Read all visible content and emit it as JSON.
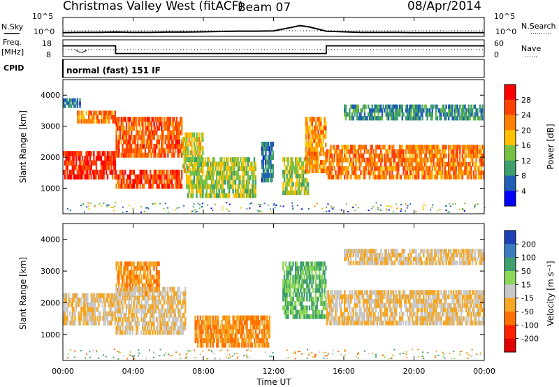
{
  "header": {
    "station": "Christmas Valley West (fitACF)",
    "beam": "Beam 07",
    "date": "08/Apr/2014"
  },
  "labels": {
    "nsky": "N.Sky",
    "nsearch": "N.Search",
    "freq": "Freq.",
    "freq_unit": "[MHz]",
    "nave": "Nave",
    "cpid": "CPID",
    "cpid_value": "normal (fast) 151 IF",
    "slant_range": "Slant Range [km]",
    "power": "Power [dB]",
    "velocity": "Velocity [m s⁻¹]",
    "time": "Time UT"
  },
  "axes": {
    "x_ticks": [
      "00:00",
      "04:00",
      "08:00",
      "12:00",
      "16:00",
      "20:00",
      "00:00"
    ],
    "y_ticks": [
      "1000",
      "2000",
      "3000",
      "4000"
    ],
    "noise_left_ticks": [
      "10^5",
      "10^0"
    ],
    "noise_right_ticks": [
      "10^5",
      "10^0"
    ],
    "freq_ticks": [
      "18",
      "8"
    ],
    "nave_ticks": [
      "60",
      "0"
    ]
  },
  "colorbars": {
    "power": {
      "ticks": [
        "28",
        "24",
        "20",
        "16",
        "12",
        "8",
        "4"
      ],
      "colors": [
        "#ff0000",
        "#ff4000",
        "#ff8000",
        "#ffc000",
        "#76c043",
        "#3e9e6e",
        "#1f5fb5",
        "#0000ff"
      ]
    },
    "velocity": {
      "ticks": [
        "200",
        "100",
        "50",
        "15",
        "-15",
        "-50",
        "-100",
        "-200"
      ],
      "colors": [
        "#1f3fb5",
        "#3a7bbf",
        "#3e9e6e",
        "#8cd65a",
        "#c8c8c8",
        "#f5a623",
        "#ff7000",
        "#ff2000",
        "#e00000"
      ]
    }
  },
  "chart_data": [
    {
      "type": "line",
      "name": "Noise (N.Sky / N.Search)",
      "x_hours": [
        0,
        1,
        2,
        3,
        4,
        5,
        6,
        7,
        8,
        9,
        10,
        11,
        12,
        13,
        13.5,
        14,
        15,
        16,
        17,
        18,
        19,
        20,
        21,
        22,
        23,
        24
      ],
      "nsky_log": [
        0.5,
        0.6,
        0.6,
        0.7,
        0.6,
        0.6,
        0.7,
        0.7,
        0.8,
        0.9,
        1.0,
        1.0,
        1.1,
        2.2,
        2.8,
        2.4,
        1.0,
        0.8,
        0.6,
        0.6,
        0.6,
        0.5,
        0.5,
        0.5,
        0.5,
        0.5
      ],
      "ylim": [
        0,
        5
      ]
    },
    {
      "type": "line",
      "name": "Frequency / Nave",
      "x_hours": [
        0,
        3,
        3,
        15,
        15,
        24
      ],
      "freq_mhz": [
        15,
        15,
        10,
        10,
        15,
        15
      ],
      "nave": [
        30,
        30,
        30,
        30,
        30,
        30
      ]
    },
    {
      "type": "heatmap",
      "name": "Power [dB]",
      "xlim": [
        0,
        24
      ],
      "ylim": [
        180,
        4500
      ],
      "clim": [
        0,
        30
      ],
      "features": [
        {
          "t0": 0.0,
          "t1": 3.0,
          "r0": 1300,
          "r1": 2200,
          "level": 28
        },
        {
          "t0": 0.8,
          "t1": 3.0,
          "r0": 3100,
          "r1": 3500,
          "level": 22
        },
        {
          "t0": 0.0,
          "t1": 1.0,
          "r0": 3600,
          "r1": 3900,
          "level": 6
        },
        {
          "t0": 3.0,
          "t1": 6.8,
          "r0": 1000,
          "r1": 1600,
          "level": 26
        },
        {
          "t0": 3.0,
          "t1": 6.8,
          "r0": 2000,
          "r1": 3300,
          "level": 24
        },
        {
          "t0": 6.8,
          "t1": 8.0,
          "r0": 1500,
          "r1": 2800,
          "level": 16
        },
        {
          "t0": 7.0,
          "t1": 11.0,
          "r0": 700,
          "r1": 2000,
          "level": 14
        },
        {
          "t0": 11.3,
          "t1": 12.0,
          "r0": 1200,
          "r1": 2500,
          "level": 6
        },
        {
          "t0": 12.5,
          "t1": 14.0,
          "r0": 800,
          "r1": 2000,
          "level": 14
        },
        {
          "t0": 13.8,
          "t1": 15.0,
          "r0": 1500,
          "r1": 3300,
          "level": 20
        },
        {
          "t0": 15.0,
          "t1": 24.0,
          "r0": 1300,
          "r1": 2400,
          "level": 22
        },
        {
          "t0": 16.0,
          "t1": 24.0,
          "r0": 3200,
          "r1": 3700,
          "level": 8
        }
      ]
    },
    {
      "type": "heatmap",
      "name": "Velocity [m s-1]",
      "xlim": [
        0,
        24
      ],
      "ylim": [
        180,
        4500
      ],
      "clim": [
        -200,
        200
      ],
      "features": [
        {
          "t0": 0.0,
          "t1": 3.0,
          "r0": 1300,
          "r1": 2300,
          "level": 0
        },
        {
          "t0": 3.0,
          "t1": 5.5,
          "r0": 2200,
          "r1": 3300,
          "level": -50
        },
        {
          "t0": 3.0,
          "t1": 7.0,
          "r0": 1000,
          "r1": 2500,
          "level": 0
        },
        {
          "t0": 7.5,
          "t1": 11.8,
          "r0": 600,
          "r1": 1600,
          "level": -50
        },
        {
          "t0": 12.5,
          "t1": 15.0,
          "r0": 1500,
          "r1": 3300,
          "level": 50
        },
        {
          "t0": 15.0,
          "t1": 24.0,
          "r0": 1300,
          "r1": 2400,
          "level": 0
        },
        {
          "t0": 16.0,
          "t1": 24.0,
          "r0": 3200,
          "r1": 3700,
          "level": 0
        }
      ]
    }
  ]
}
